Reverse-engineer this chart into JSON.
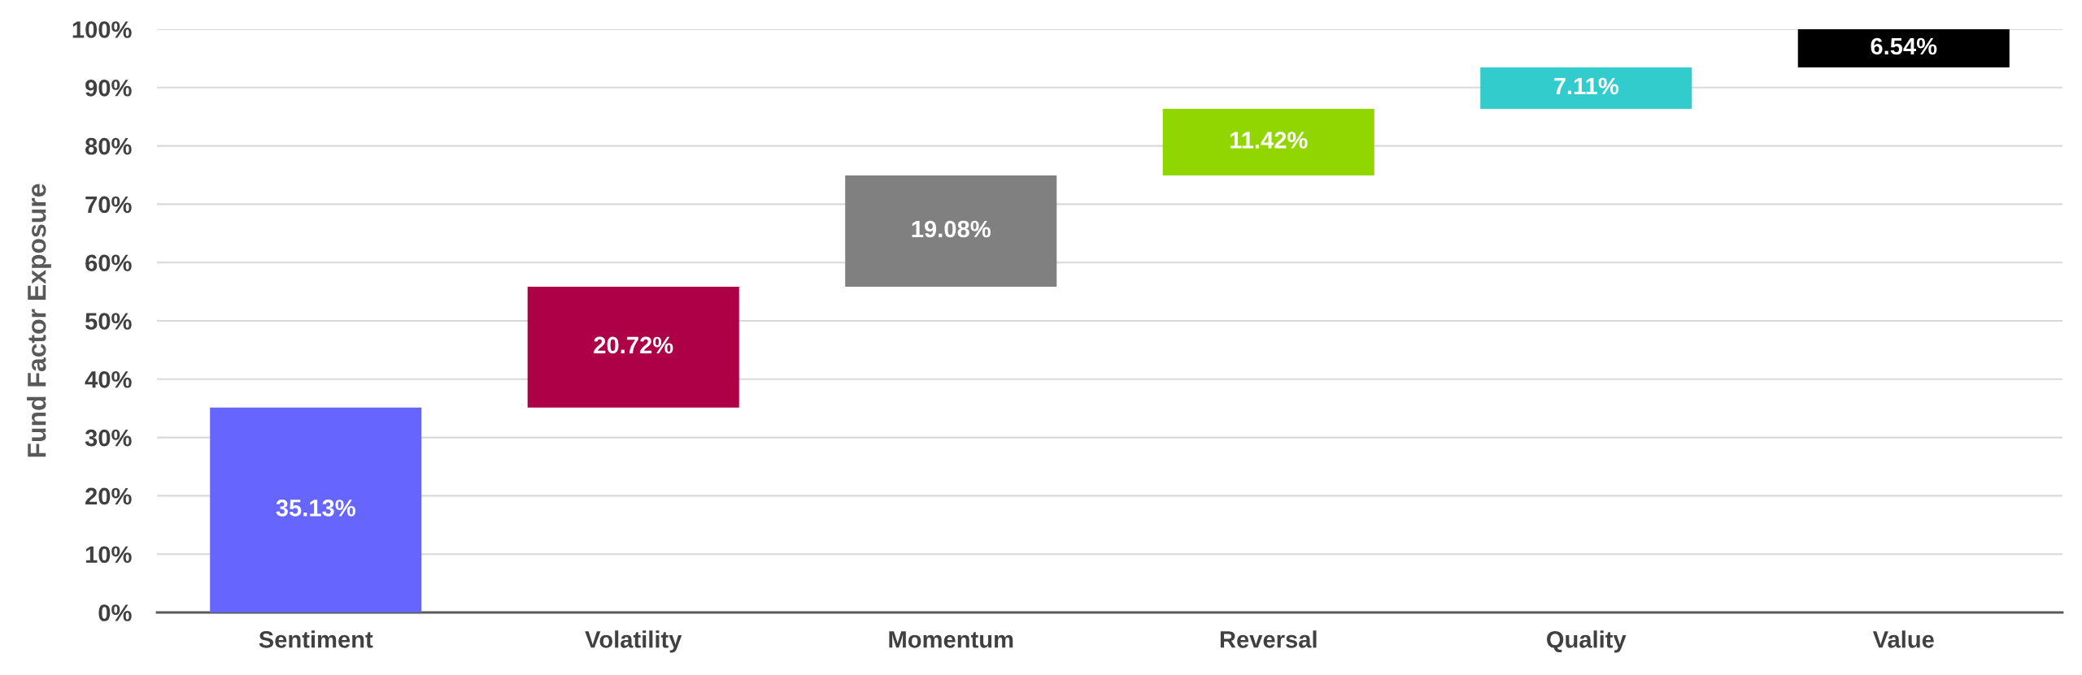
{
  "chart_data": {
    "type": "bar",
    "ylabel": "Fund Factor Exposure",
    "categories": [
      "Sentiment",
      "Volatility",
      "Momentum",
      "Reversal",
      "Quality",
      "Value"
    ],
    "values": [
      35.13,
      20.72,
      19.08,
      11.42,
      7.11,
      6.54
    ],
    "base": [
      0,
      35.13,
      55.85,
      74.93,
      86.35,
      93.46
    ],
    "colors": [
      "#6666ff",
      "#ad0046",
      "#808080",
      "#91d600",
      "#33cccc",
      "#000000"
    ],
    "value_labels": [
      "35.13%",
      "20.72%",
      "19.08%",
      "11.42%",
      "7.11%",
      "6.54%"
    ],
    "ylim": [
      0,
      100
    ],
    "yticks": [
      {
        "value": 0,
        "label": "0%"
      },
      {
        "value": 10,
        "label": "10%"
      },
      {
        "value": 20,
        "label": "20%"
      },
      {
        "value": 30,
        "label": "30%"
      },
      {
        "value": 40,
        "label": "40%"
      },
      {
        "value": 50,
        "label": "50%"
      },
      {
        "value": 60,
        "label": "60%"
      },
      {
        "value": 70,
        "label": "70%"
      },
      {
        "value": 80,
        "label": "80%"
      },
      {
        "value": 90,
        "label": "90%"
      },
      {
        "value": 100,
        "label": "100%"
      }
    ],
    "grid": "y"
  }
}
